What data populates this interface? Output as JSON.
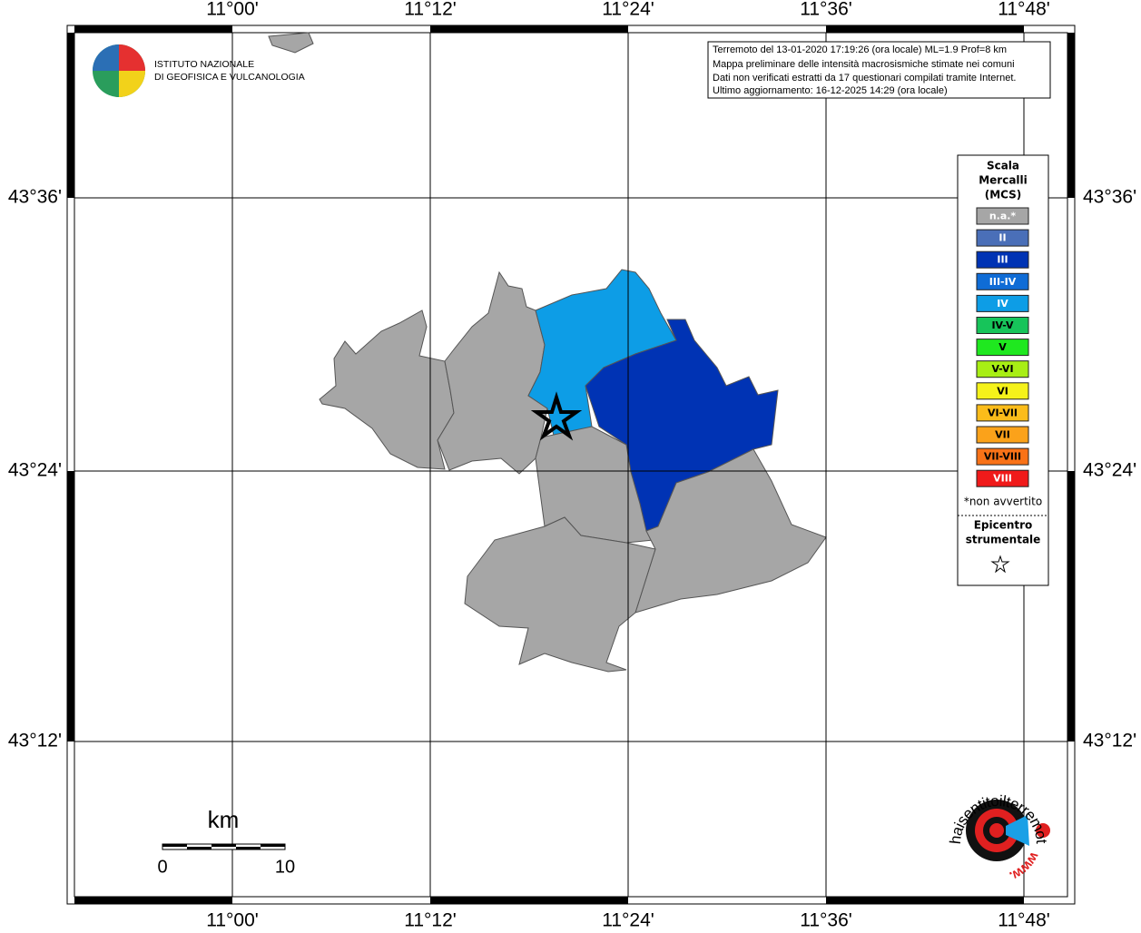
{
  "header": {
    "logo_lines": [
      "ISTITUTO NAZIONALE",
      "DI GEOFISICA E VULCANOLOGIA"
    ]
  },
  "info": {
    "lines": [
      "Terremoto del 13-01-2020 17:19:26 (ora locale) ML=1.9 Prof=8 km",
      "Mappa preliminare delle intensità macrosismiche stimate nei comuni",
      "Dati non verificati estratti da 17 questionari compilati tramite Internet.",
      "Ultimo aggiornamento: 16-12-2025 14:29 (ora locale)"
    ]
  },
  "axes": {
    "longitude_labels": [
      "11°00'",
      "11°12'",
      "11°24'",
      "11°36'",
      "11°48'"
    ],
    "latitude_labels": [
      "43°36'",
      "43°24'",
      "43°12'"
    ]
  },
  "legend": {
    "title_lines": [
      "Scala",
      "Mercalli",
      "(MCS)"
    ],
    "entries": [
      {
        "label": "n.a.*",
        "color": "#a6a6a6",
        "text_color": "#ffffff"
      },
      {
        "label": "II",
        "color": "#4a6fb8",
        "text_color": "#ffffff"
      },
      {
        "label": "III",
        "color": "#0033b4",
        "text_color": "#ffffff"
      },
      {
        "label": "III-IV",
        "color": "#0f6cd6",
        "text_color": "#ffffff"
      },
      {
        "label": "IV",
        "color": "#0d9de6",
        "text_color": "#ffffff"
      },
      {
        "label": "IV-V",
        "color": "#17c45a",
        "text_color": "#000000"
      },
      {
        "label": "V",
        "color": "#1fe81f",
        "text_color": "#000000"
      },
      {
        "label": "V-VI",
        "color": "#a8ee14",
        "text_color": "#000000"
      },
      {
        "label": "VI",
        "color": "#f5f21a",
        "text_color": "#000000"
      },
      {
        "label": "VI-VII",
        "color": "#fbbc1a",
        "text_color": "#000000"
      },
      {
        "label": "VII",
        "color": "#fba21a",
        "text_color": "#000000"
      },
      {
        "label": "VII-VIII",
        "color": "#f97217",
        "text_color": "#000000"
      },
      {
        "label": "VIII",
        "color": "#f01a1a",
        "text_color": "#ffffff"
      }
    ],
    "note": "*non avvertito",
    "epicenter_lines": [
      "Epicentro",
      "strumentale"
    ]
  },
  "scale_bar": {
    "unit": "km",
    "start": "0",
    "end": "10"
  },
  "footer_logo": {
    "text": "haisentitoilterremoto.it",
    "url": "www."
  }
}
